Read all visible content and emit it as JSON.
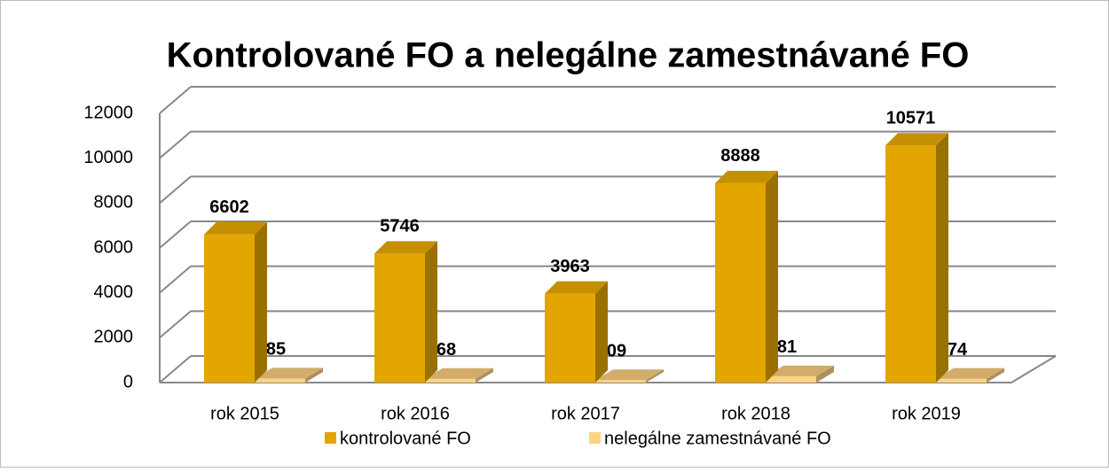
{
  "chart_data": {
    "type": "bar3d",
    "title": "Kontrolované FO a nelegálne zamestnávané FO",
    "categories": [
      "rok 2015",
      "rok 2016",
      "rok 2017",
      "rok 2018",
      "rok 2019"
    ],
    "series": [
      {
        "name": "kontrolované FO",
        "color": "#E3A600",
        "values": [
          6602,
          5746,
          3963,
          8888,
          10571
        ]
      },
      {
        "name": "nelegálne zamestnávané FO",
        "color": "#FFD283",
        "values": [
          185,
          168,
          109,
          281,
          174
        ]
      }
    ],
    "ylim": [
      0,
      12000
    ],
    "yticks": [
      0,
      2000,
      4000,
      6000,
      8000,
      10000,
      12000
    ],
    "grid": true,
    "legend": "bottom"
  }
}
